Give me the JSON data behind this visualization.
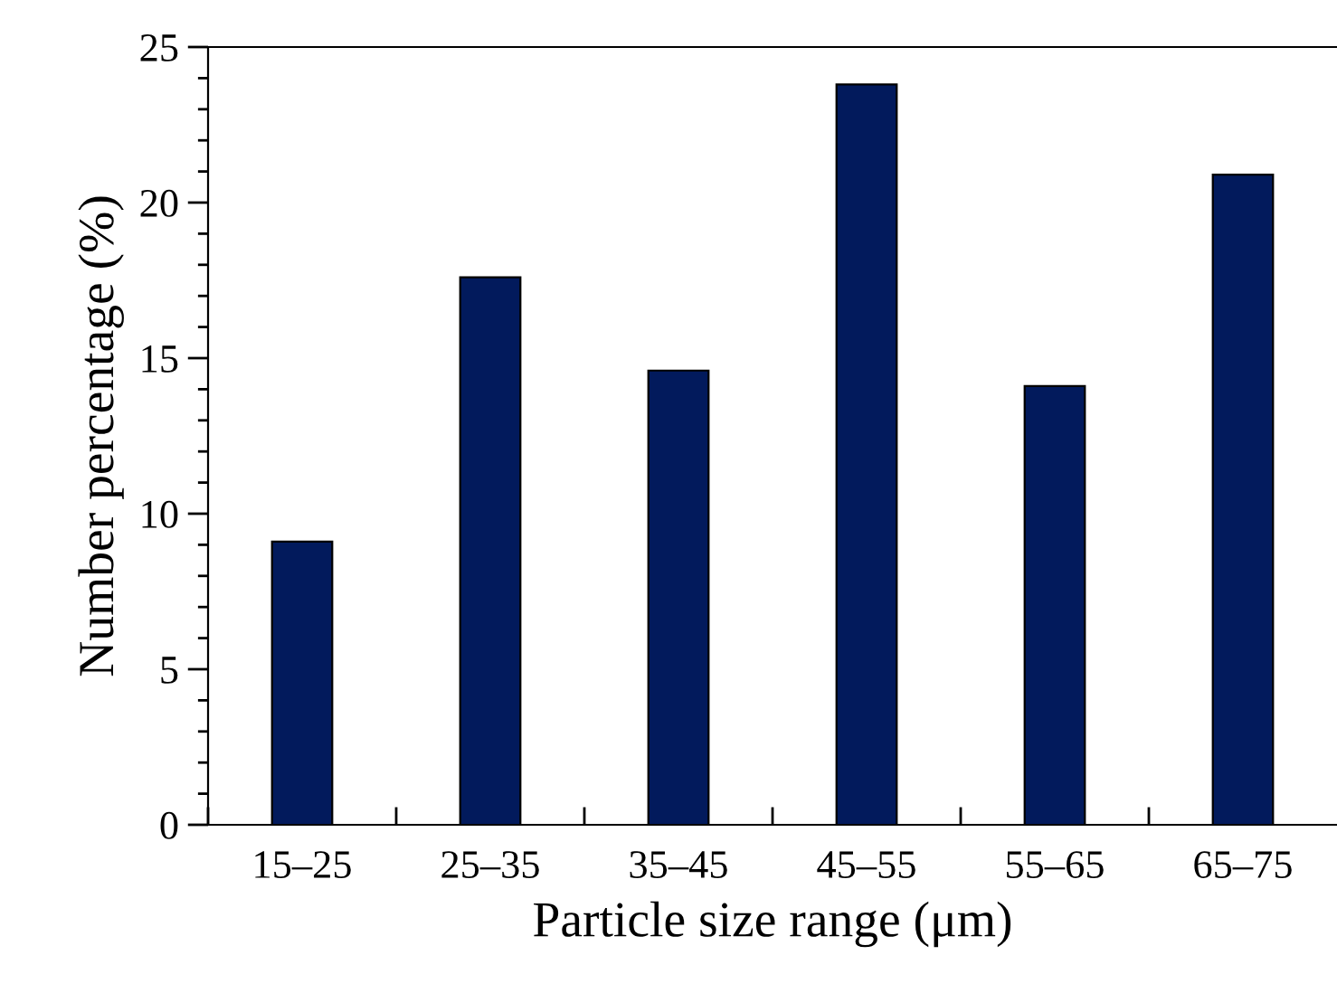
{
  "chart_data": {
    "type": "bar",
    "xlabel": "Particle size range (μm)",
    "ylabel": "Number percentage (%)",
    "categories": [
      "15–25",
      "25–35",
      "35–45",
      "45–55",
      "55–65",
      "65–75"
    ],
    "values": [
      9.1,
      17.6,
      14.6,
      23.8,
      14.1,
      20.9
    ],
    "color": "#021a5c",
    "ylim": [
      0,
      25
    ],
    "yticks": [
      0,
      5,
      10,
      15,
      20,
      25
    ],
    "grid": false
  }
}
